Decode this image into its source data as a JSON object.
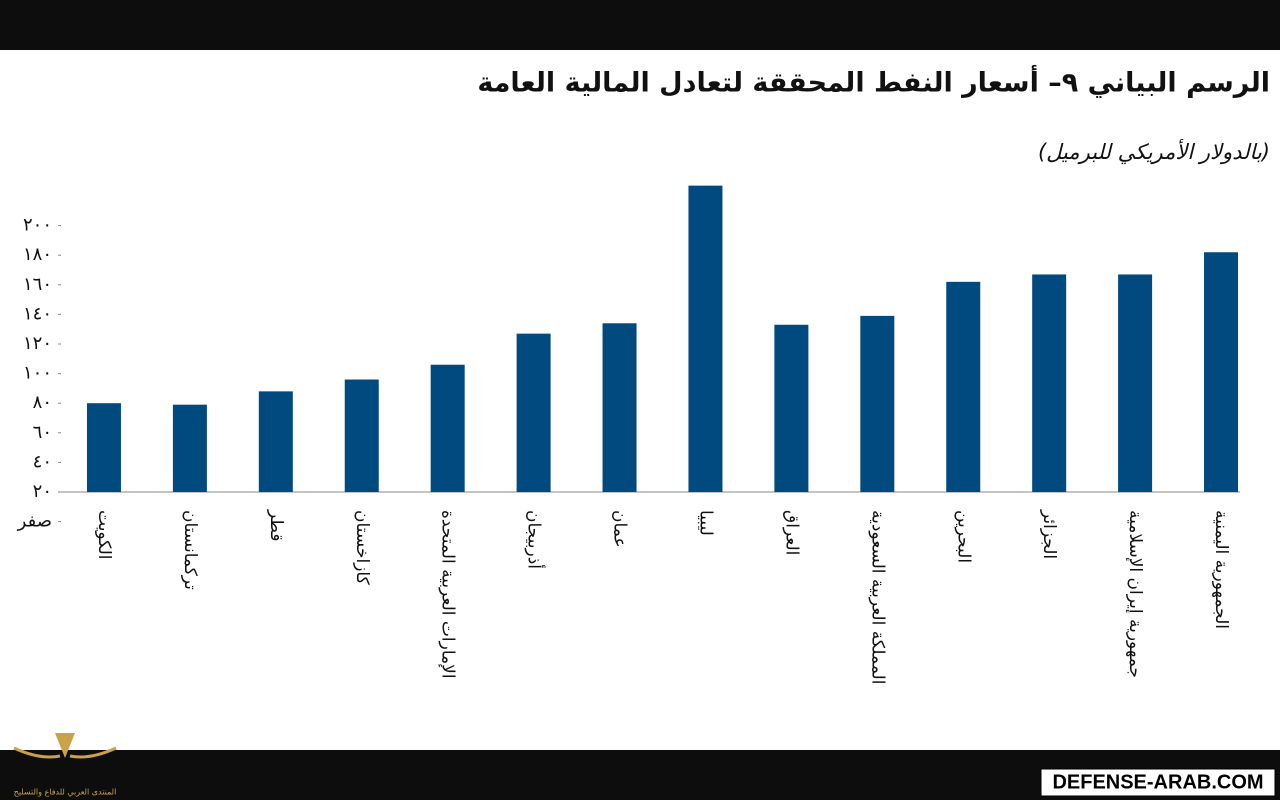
{
  "chart_data": {
    "type": "bar",
    "title": "الرسم البياني ٩– أسعار النفط المحققة لتعادل المالية العامة",
    "subtitle": "(بالدولار الأمريكي للبرميل)",
    "categories": [
      "الكويت",
      "تركمانستان",
      "قطر",
      "كازاخستان",
      "الإمارات العربية المتحدة",
      "أذربيجان",
      "عمان",
      "ليبيا",
      "العراق",
      "المملكة العربية السعودية",
      "البحرين",
      "الجزائر",
      "جمهورية إيران الإسلامية",
      "الجمهورية اليمنية"
    ],
    "values": [
      80,
      79,
      88,
      96,
      106,
      127,
      134,
      227,
      133,
      139,
      162,
      167,
      167,
      182
    ],
    "color": "#004a80",
    "ylim": [
      20,
      230
    ],
    "yticks": [
      {
        "value": 0,
        "label": "صفر"
      },
      {
        "value": 20,
        "label": "٢٠"
      },
      {
        "value": 40,
        "label": "٤٠"
      },
      {
        "value": 60,
        "label": "٦٠"
      },
      {
        "value": 80,
        "label": "٨٠"
      },
      {
        "value": 100,
        "label": "١٠٠"
      },
      {
        "value": 120,
        "label": "١٢٠"
      },
      {
        "value": 140,
        "label": "١٤٠"
      },
      {
        "value": 160,
        "label": "١٦٠"
      },
      {
        "value": 180,
        "label": "١٨٠"
      },
      {
        "value": 200,
        "label": "٢٠٠"
      }
    ]
  },
  "watermark": "DEFENSE-ARAB.COM",
  "logo_text": "المنتدى العربي للدفاع والتسليح"
}
